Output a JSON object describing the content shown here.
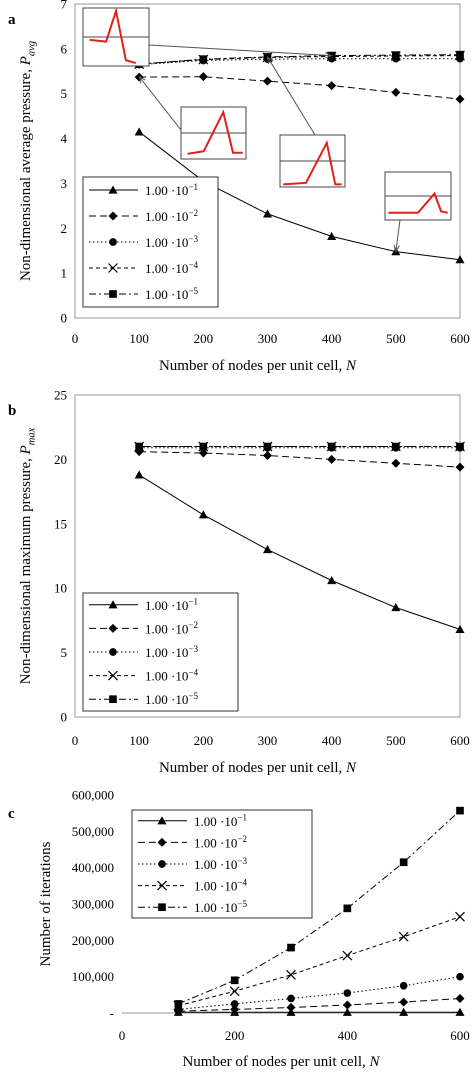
{
  "chart_data": [
    {
      "panel_label": "a",
      "type": "line",
      "xlabel": "Number of nodes per unit cell, N",
      "ylabel": "Non-dimensional average pressure, P_avg",
      "xlim": [
        0,
        600
      ],
      "ylim": [
        0,
        7
      ],
      "xticks": [
        "0",
        "100",
        "200",
        "300",
        "400",
        "500",
        "600"
      ],
      "yticks": [
        "0",
        "1",
        "2",
        "3",
        "4",
        "5",
        "6",
        "7"
      ],
      "x": [
        100,
        200,
        300,
        400,
        500,
        600
      ],
      "legend_position": "lower-left",
      "series": [
        {
          "name": "1.00 ·10⁻¹",
          "marker": "triangle",
          "dash": "solid",
          "values": [
            4.15,
            3.05,
            2.32,
            1.82,
            1.48,
            1.3
          ]
        },
        {
          "name": "1.00 ·10⁻²",
          "marker": "diamond",
          "dash": "dashed",
          "values": [
            5.37,
            5.38,
            5.28,
            5.18,
            5.03,
            4.88
          ]
        },
        {
          "name": "1.00 ·10⁻³",
          "marker": "circle",
          "dash": "dotted",
          "values": [
            5.65,
            5.74,
            5.77,
            5.78,
            5.78,
            5.78
          ]
        },
        {
          "name": "1.00 ·10⁻⁴",
          "marker": "x",
          "dash": "short-dash",
          "values": [
            5.66,
            5.76,
            5.81,
            5.83,
            5.84,
            5.85
          ]
        },
        {
          "name": "1.00 ·10⁻⁵",
          "marker": "square",
          "dash": "dash-dot",
          "values": [
            5.66,
            5.77,
            5.82,
            5.85,
            5.86,
            5.87
          ]
        }
      ],
      "insets": [
        "pressure profile thumbnail",
        "pressure profile thumbnail",
        "pressure profile thumbnail",
        "pressure profile thumbnail"
      ]
    },
    {
      "panel_label": "b",
      "type": "line",
      "xlabel": "Number of nodes per unit cell, N",
      "ylabel": "Non-dimensional maximum pressure, P_max",
      "xlim": [
        0,
        600
      ],
      "ylim": [
        0,
        25
      ],
      "xticks": [
        "0",
        "100",
        "200",
        "300",
        "400",
        "500",
        "600"
      ],
      "yticks": [
        "0",
        "5",
        "10",
        "15",
        "20",
        "25"
      ],
      "x": [
        100,
        200,
        300,
        400,
        500,
        600
      ],
      "legend_position": "lower-left",
      "series": [
        {
          "name": "1.00 ·10⁻¹",
          "marker": "triangle",
          "dash": "solid",
          "values": [
            18.8,
            15.7,
            13.0,
            10.6,
            8.5,
            6.8
          ]
        },
        {
          "name": "1.00 ·10⁻²",
          "marker": "diamond",
          "dash": "dashed",
          "values": [
            20.6,
            20.5,
            20.3,
            20.0,
            19.7,
            19.4
          ]
        },
        {
          "name": "1.00 ·10⁻³",
          "marker": "circle",
          "dash": "dotted",
          "values": [
            20.9,
            20.9,
            20.9,
            20.9,
            20.9,
            20.9
          ]
        },
        {
          "name": "1.00 ·10⁻⁴",
          "marker": "x",
          "dash": "short-dash",
          "values": [
            21.0,
            21.0,
            21.0,
            21.0,
            21.0,
            21.0
          ]
        },
        {
          "name": "1.00 ·10⁻⁵",
          "marker": "square",
          "dash": "dash-dot",
          "values": [
            21.0,
            21.0,
            21.0,
            21.0,
            21.0,
            21.0
          ]
        }
      ]
    },
    {
      "panel_label": "c",
      "type": "line",
      "xlabel": "Number of nodes per unit cell, N",
      "ylabel": "Number of iterations",
      "xlim": [
        0,
        600
      ],
      "ylim": [
        0,
        600000
      ],
      "xticks": [
        "0",
        "200",
        "400",
        "600"
      ],
      "yticks": [
        "-",
        "100,000",
        "200,000",
        "300,000",
        "400,000",
        "500,000",
        "600,000"
      ],
      "x": [
        100,
        200,
        300,
        400,
        500,
        600
      ],
      "legend_position": "upper-left",
      "series": [
        {
          "name": "1.00 ·10⁻¹",
          "marker": "triangle",
          "dash": "solid",
          "values": [
            2000,
            2000,
            2000,
            2000,
            2000,
            2000
          ]
        },
        {
          "name": "1.00 ·10⁻²",
          "marker": "diamond",
          "dash": "dashed",
          "values": [
            5000,
            10000,
            15000,
            22000,
            30000,
            40000
          ]
        },
        {
          "name": "1.00 ·10⁻³",
          "marker": "circle",
          "dash": "dotted",
          "values": [
            10000,
            25000,
            40000,
            55000,
            75000,
            100000
          ]
        },
        {
          "name": "1.00 ·10⁻⁴",
          "marker": "x",
          "dash": "short-dash",
          "values": [
            20000,
            60000,
            105000,
            158000,
            210000,
            265000
          ]
        },
        {
          "name": "1.00 ·10⁻⁵",
          "marker": "square",
          "dash": "dash-dot",
          "values": [
            25000,
            90000,
            180000,
            288000,
            415000,
            557000
          ]
        }
      ]
    }
  ]
}
